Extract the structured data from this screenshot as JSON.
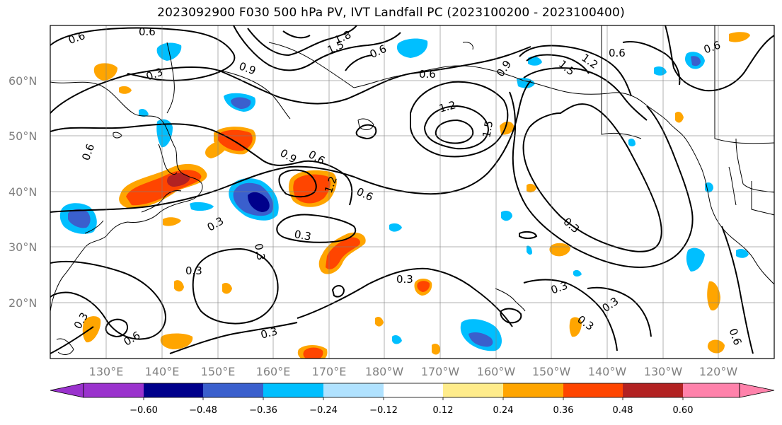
{
  "title": "2023092900 F030 500 hPa PV, IVT Landfall PC (2023100200 - 2023100400)",
  "map": {
    "lat_labels": [
      "60°N",
      "50°N",
      "40°N",
      "30°N",
      "20°N"
    ],
    "lon_labels": [
      "130°E",
      "140°E",
      "150°E",
      "160°E",
      "170°E",
      "180°W",
      "170°W",
      "160°W",
      "150°W",
      "140°W",
      "130°W",
      "120°W"
    ],
    "contour_labels": [
      "0.6",
      "0.6",
      "0.3",
      "1.8",
      "1.5",
      "0.6",
      "0.9",
      "0.6",
      "0.9",
      "1.2",
      "1.5",
      "0.6",
      "0.6",
      "0.6",
      "1.2",
      "1.5",
      "0.6",
      "0.9",
      "0.6",
      "1.2",
      "0.6",
      "0.3",
      "0.3",
      "0.3",
      "0.3",
      "0.3",
      "0.3",
      "0.3",
      "0.6",
      "0.3",
      "0.3",
      "0.3",
      "0.3"
    ]
  },
  "colorbar": {
    "ticks": [
      "−0.60",
      "−0.48",
      "−0.36",
      "−0.24",
      "−0.12",
      "0.12",
      "0.24",
      "0.36",
      "0.48",
      "0.60"
    ],
    "colors": [
      "#9a32cd",
      "#00008b",
      "#3a5fcd",
      "#00bfff",
      "#b0e2ff",
      "#ffffff",
      "#ffec8b",
      "#ffa500",
      "#ff4500",
      "#b22222",
      "#ff82ab"
    ]
  }
}
